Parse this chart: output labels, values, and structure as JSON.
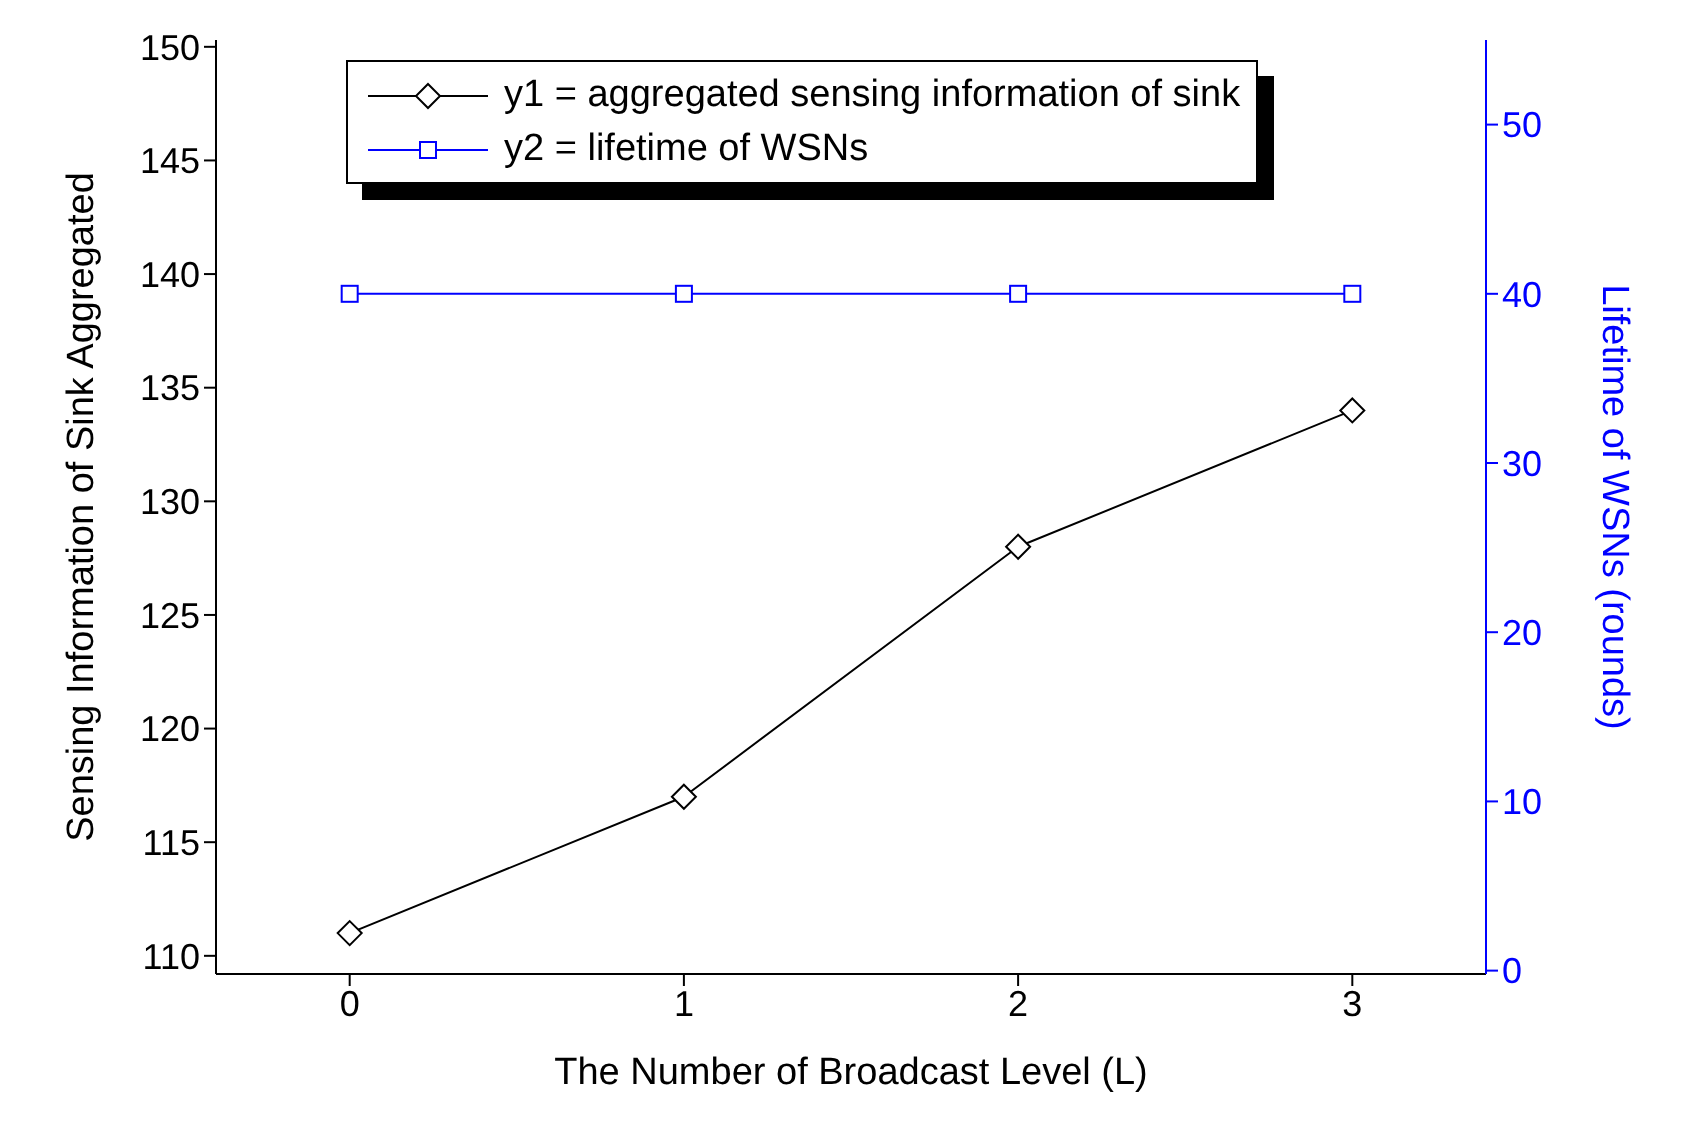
{
  "chart_data": {
    "type": "line",
    "xlabel": "The Number of Broadcast Level (L)",
    "ylabel": "Sensing Information of Sink Aggregated",
    "y2label": "Lifetime of WSNs (rounds)",
    "x": [
      0,
      1,
      2,
      3
    ],
    "series": [
      {
        "name": "y1 = aggregated sensing information of sink",
        "color": "#000000",
        "values": [
          111,
          117,
          128,
          134
        ],
        "marker": "diamond"
      },
      {
        "name": "y2 = lifetime of WSNs",
        "color": "#0000ff",
        "values": [
          40,
          40,
          40,
          40
        ],
        "marker": "square",
        "axis": "y2"
      }
    ],
    "xlim": [
      -0.4,
      3.4
    ],
    "xticks": [
      0,
      1,
      2,
      3
    ],
    "ylim": [
      109.2,
      150.3
    ],
    "yticks": [
      110,
      115,
      120,
      125,
      130,
      135,
      140,
      145,
      150
    ],
    "y2lim": [
      -0.2,
      55
    ],
    "y2ticks": [
      0,
      10,
      20,
      30,
      40,
      50
    ],
    "legend": "top left",
    "line_style": "solid"
  }
}
